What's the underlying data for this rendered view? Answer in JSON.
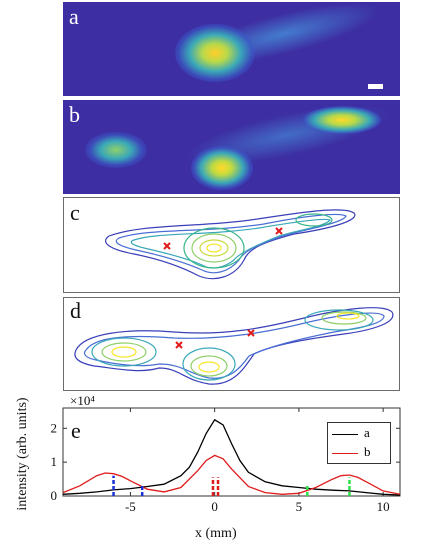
{
  "panels": {
    "a": {
      "label": "a"
    },
    "b": {
      "label": "b"
    },
    "c": {
      "label": "c"
    },
    "d": {
      "label": "d"
    },
    "e": {
      "label": "e"
    }
  },
  "colors": {
    "image_background": "#3d2ea3",
    "contour_low": "#3b3fb8",
    "contour_high": "#f5e62a",
    "marker": "#e01b1b",
    "curve_a": "#000000",
    "curve_b": "#e01b1b",
    "dash_blue": "#1a2fd6",
    "dash_red": "#e01b1b",
    "dash_green": "#2ee048"
  },
  "chart_data": {
    "type": "line",
    "panel_label": "e",
    "multiplier_text": "×10⁴",
    "xlabel": "x (mm)",
    "ylabel": "intensity (arb. units)",
    "xlim": [
      -9,
      11
    ],
    "ylim": [
      0,
      2.6
    ],
    "xticks": [
      -5,
      0,
      5,
      10
    ],
    "yticks": [
      0,
      1,
      2
    ],
    "legend_position": "top-right",
    "series": [
      {
        "name": "a",
        "color": "#000000",
        "x": [
          -9,
          -8,
          -7,
          -6,
          -5,
          -4,
          -3,
          -2,
          -1.5,
          -1,
          -0.5,
          0,
          0.5,
          1,
          1.5,
          2,
          3,
          4,
          5,
          6,
          7,
          8,
          9,
          10,
          11
        ],
        "y": [
          0.05,
          0.08,
          0.12,
          0.18,
          0.22,
          0.28,
          0.35,
          0.6,
          0.85,
          1.3,
          1.85,
          2.25,
          2.1,
          1.55,
          1.05,
          0.7,
          0.42,
          0.3,
          0.25,
          0.2,
          0.17,
          0.15,
          0.1,
          0.05,
          0.03
        ]
      },
      {
        "name": "b",
        "color": "#e01b1b",
        "x": [
          -9,
          -8,
          -7,
          -6.5,
          -6,
          -5.5,
          -5,
          -4,
          -3,
          -2,
          -1,
          -0.5,
          0,
          0.5,
          1,
          2,
          3,
          4,
          5,
          6,
          7,
          7.5,
          8,
          8.5,
          9,
          10,
          11
        ],
        "y": [
          0.1,
          0.3,
          0.6,
          0.68,
          0.66,
          0.58,
          0.45,
          0.2,
          0.12,
          0.25,
          0.75,
          1.05,
          1.2,
          1.1,
          0.8,
          0.28,
          0.1,
          0.05,
          0.08,
          0.25,
          0.5,
          0.6,
          0.62,
          0.55,
          0.42,
          0.15,
          0.05
        ]
      }
    ],
    "markers": [
      {
        "x": -6.0,
        "y": 0.6,
        "color": "#1a2fd6"
      },
      {
        "x": -4.3,
        "y": 0.35,
        "color": "#1a2fd6"
      },
      {
        "x": -0.1,
        "y": 0.55,
        "color": "#e01b1b"
      },
      {
        "x": 0.2,
        "y": 0.55,
        "color": "#e01b1b"
      },
      {
        "x": 5.5,
        "y": 0.3,
        "color": "#2ee048"
      },
      {
        "x": 8.0,
        "y": 0.55,
        "color": "#2ee048"
      }
    ]
  }
}
